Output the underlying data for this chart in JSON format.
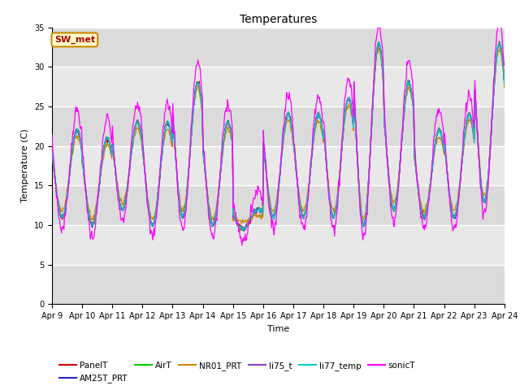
{
  "title": "Temperatures",
  "xlabel": "Time",
  "ylabel": "Temperature (C)",
  "ylim": [
    0,
    35
  ],
  "yticks": [
    0,
    5,
    10,
    15,
    20,
    25,
    30,
    35
  ],
  "x_labels": [
    "Apr 9",
    "Apr 10",
    "Apr 11",
    "Apr 12",
    "Apr 13",
    "Apr 14",
    "Apr 15",
    "Apr 16",
    "Apr 17",
    "Apr 18",
    "Apr 19",
    "Apr 20",
    "Apr 21",
    "Apr 22",
    "Apr 23",
    "Apr 24"
  ],
  "series_colors": {
    "PanelT": "#cc0000",
    "AM25T_PRT": "#2222cc",
    "AirT": "#00cc00",
    "NR01_PRT": "#cc8800",
    "li75_t": "#8844cc",
    "li77_temp": "#00cccc",
    "sonicT": "#ff00ff"
  },
  "legend_box_facecolor": "#ffffcc",
  "legend_box_edgecolor": "#cc8800",
  "legend_box_text_color": "#aa0000",
  "legend_box_label": "SW_met",
  "plot_bg_color": "#e8e8e8",
  "band_color": "#d8d8d8",
  "n_days": 15,
  "n_per_day": 48,
  "day_peaks": [
    22,
    21,
    23,
    23,
    28,
    23,
    12,
    24,
    24,
    26,
    33,
    28,
    22,
    24,
    33
  ],
  "day_troughs": [
    11,
    10,
    12,
    10,
    11,
    10,
    9.5,
    11,
    11,
    11,
    10,
    12,
    11,
    11,
    13
  ],
  "sonic_peak_add": 2.5,
  "sonic_trough_sub": 1.5,
  "linewidth": 0.9
}
